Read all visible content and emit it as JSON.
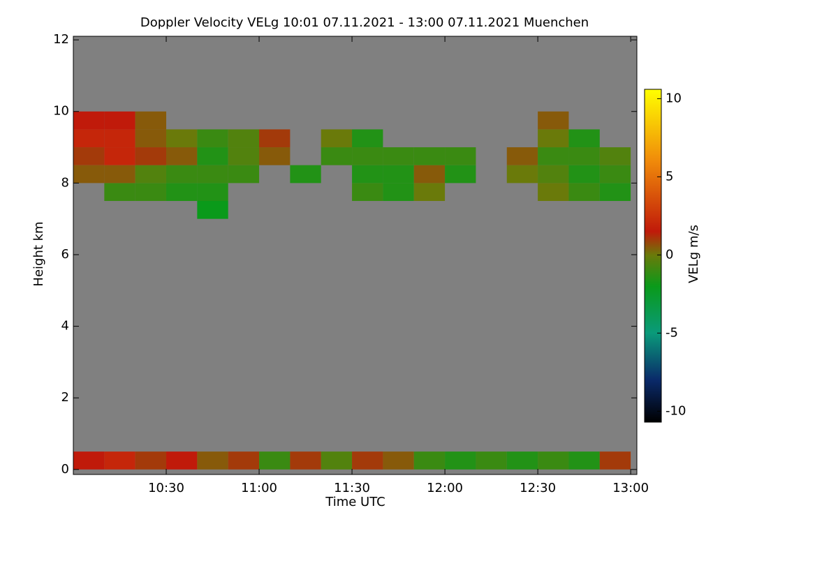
{
  "chart_data": {
    "type": "heatmap",
    "title": "Doppler Velocity VELg   10:01 07.11.2021 - 13:00 07.11.2021 Muenchen",
    "xlabel": "Time UTC",
    "ylabel": "Height km",
    "colorbar_label": "VELg m/s",
    "xlim": [
      600,
      782
    ],
    "xticks": [
      {
        "value": 630,
        "label": "10:30"
      },
      {
        "value": 660,
        "label": "11:00"
      },
      {
        "value": 690,
        "label": "11:30"
      },
      {
        "value": 720,
        "label": "12:00"
      },
      {
        "value": 750,
        "label": "12:30"
      },
      {
        "value": 780,
        "label": "13:00"
      }
    ],
    "ylim": [
      -0.14,
      12.1
    ],
    "yticks": [
      0,
      2,
      4,
      6,
      8,
      10,
      12
    ],
    "clim": [
      -10.7,
      10.6
    ],
    "cticks": [
      -10,
      -5,
      0,
      5,
      10
    ],
    "background": "#808080",
    "colormap": [
      {
        "value": -10.7,
        "color": "#000000"
      },
      {
        "value": -8,
        "color": "#0a2a6a"
      },
      {
        "value": -5,
        "color": "#0a9a7a"
      },
      {
        "value": -2,
        "color": "#0a9a1a"
      },
      {
        "value": 0,
        "color": "#6a7a0a"
      },
      {
        "value": 1.5,
        "color": "#c01a0a"
      },
      {
        "value": 6,
        "color": "#f08a0a"
      },
      {
        "value": 10.6,
        "color": "#ffff00"
      }
    ],
    "x_edges": [
      600,
      610,
      620,
      630,
      640,
      650,
      660,
      670,
      680,
      690,
      700,
      710,
      720,
      730,
      740,
      750,
      760,
      770,
      780
    ],
    "y_edges": [
      0,
      0.5,
      1,
      1.5,
      2,
      2.5,
      3,
      3.5,
      4,
      4.5,
      5,
      5.5,
      6,
      6.5,
      7,
      7.5,
      8,
      8.5,
      9,
      9.5,
      10,
      10.5,
      11,
      11.5,
      12
    ],
    "values": [
      [
        1.5,
        2,
        1,
        1.5,
        0.5,
        1,
        -1,
        1,
        -0.5,
        1,
        0.5,
        -1,
        -1.5,
        -1,
        -1.5,
        -1,
        -1.5,
        1
      ],
      [
        null,
        null,
        null,
        null,
        null,
        null,
        null,
        null,
        null,
        null,
        null,
        null,
        null,
        null,
        null,
        null,
        null,
        null
      ],
      [
        null,
        null,
        null,
        null,
        null,
        null,
        null,
        null,
        null,
        null,
        null,
        null,
        null,
        null,
        null,
        null,
        null,
        null
      ],
      [
        null,
        null,
        null,
        null,
        null,
        null,
        null,
        null,
        null,
        null,
        null,
        null,
        null,
        null,
        null,
        null,
        null,
        null
      ],
      [
        null,
        null,
        null,
        null,
        null,
        null,
        null,
        null,
        null,
        null,
        null,
        null,
        null,
        null,
        null,
        null,
        null,
        null
      ],
      [
        null,
        null,
        null,
        null,
        null,
        null,
        null,
        null,
        null,
        null,
        null,
        null,
        null,
        null,
        null,
        null,
        null,
        null
      ],
      [
        null,
        null,
        null,
        null,
        null,
        null,
        null,
        null,
        null,
        null,
        null,
        null,
        null,
        null,
        null,
        null,
        null,
        null
      ],
      [
        null,
        null,
        null,
        null,
        null,
        null,
        null,
        null,
        null,
        null,
        null,
        null,
        null,
        null,
        null,
        null,
        null,
        null
      ],
      [
        null,
        null,
        null,
        null,
        null,
        null,
        null,
        null,
        null,
        null,
        null,
        null,
        null,
        null,
        null,
        null,
        null,
        null
      ],
      [
        null,
        null,
        null,
        null,
        null,
        null,
        null,
        null,
        null,
        null,
        null,
        null,
        null,
        null,
        null,
        null,
        null,
        null
      ],
      [
        null,
        null,
        null,
        null,
        null,
        null,
        null,
        null,
        null,
        null,
        null,
        null,
        null,
        null,
        null,
        null,
        null,
        null
      ],
      [
        null,
        null,
        null,
        null,
        null,
        null,
        null,
        null,
        null,
        null,
        null,
        null,
        null,
        null,
        null,
        null,
        null,
        null
      ],
      [
        null,
        null,
        null,
        null,
        null,
        null,
        null,
        null,
        null,
        null,
        null,
        null,
        null,
        null,
        null,
        null,
        null,
        null
      ],
      [
        null,
        null,
        null,
        null,
        null,
        null,
        null,
        null,
        null,
        null,
        null,
        null,
        null,
        null,
        null,
        null,
        null,
        null
      ],
      [
        null,
        null,
        null,
        null,
        -2,
        null,
        null,
        null,
        null,
        null,
        null,
        null,
        null,
        null,
        null,
        null,
        null,
        null
      ],
      [
        null,
        -1,
        -1,
        -1.5,
        -1.5,
        null,
        null,
        null,
        null,
        -1,
        -1.5,
        0,
        null,
        null,
        null,
        0,
        -1,
        -1.5
      ],
      [
        0.5,
        0.5,
        -0.5,
        -1,
        -1,
        -1,
        null,
        -1.5,
        null,
        -1.5,
        -1.5,
        0.5,
        -1.5,
        null,
        0,
        -0.5,
        -1.5,
        -1
      ],
      [
        1,
        2,
        1,
        0.5,
        -1.5,
        -0.5,
        0.5,
        null,
        -1,
        -1,
        -1,
        -1,
        -1,
        null,
        0.5,
        -1,
        -1,
        -0.5
      ],
      [
        2,
        2,
        0.5,
        0,
        -1,
        -0.5,
        1,
        null,
        0,
        -1.5,
        null,
        null,
        null,
        null,
        null,
        0,
        -1.5,
        null
      ],
      [
        1.5,
        1.5,
        0.5,
        null,
        null,
        null,
        null,
        null,
        null,
        null,
        null,
        null,
        null,
        null,
        null,
        0.5,
        null,
        null
      ],
      [
        null,
        null,
        null,
        null,
        null,
        null,
        null,
        null,
        null,
        null,
        null,
        null,
        null,
        null,
        null,
        null,
        null,
        null
      ],
      [
        null,
        null,
        null,
        null,
        null,
        null,
        null,
        null,
        null,
        null,
        null,
        null,
        null,
        null,
        null,
        null,
        null,
        null
      ],
      [
        null,
        null,
        null,
        null,
        null,
        null,
        null,
        null,
        null,
        null,
        null,
        null,
        null,
        null,
        null,
        null,
        null,
        null
      ],
      [
        null,
        null,
        null,
        null,
        null,
        null,
        null,
        null,
        null,
        null,
        null,
        null,
        null,
        null,
        null,
        null,
        null,
        null
      ]
    ]
  }
}
